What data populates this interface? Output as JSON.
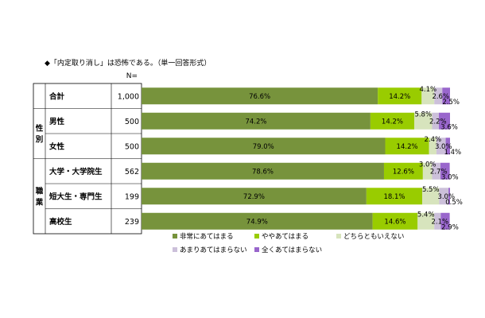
{
  "title": "◆「内定取り消し」は恐怖である。（単一回答形式）",
  "n_header": "N=",
  "groups": [
    {
      "label": "",
      "rows": [
        0
      ]
    },
    {
      "label": "性別",
      "rows": [
        1,
        2
      ]
    },
    {
      "label": "職業",
      "rows": [
        3,
        4,
        5
      ]
    }
  ],
  "chart_data": {
    "type": "bar",
    "orientation": "horizontal",
    "stacked": true,
    "normalized_to_100_percent": true,
    "categories": [
      "合計",
      "男性",
      "女性",
      "大学・大学院生",
      "短大生・専門生",
      "高校生"
    ],
    "n": [
      "1,000",
      "500",
      "500",
      "562",
      "199",
      "239"
    ],
    "series": [
      {
        "name": "非常にあてはまる",
        "color": "#77933c",
        "values": [
          76.6,
          74.2,
          79.0,
          78.6,
          72.9,
          74.9
        ],
        "labels": [
          "76.6%",
          "74.2%",
          "79.0%",
          "78.6%",
          "72.9%",
          "74.9%"
        ]
      },
      {
        "name": "ややあてはまる",
        "color": "#99cc00",
        "values": [
          14.2,
          14.2,
          14.2,
          12.6,
          18.1,
          14.6
        ],
        "labels": [
          "14.2%",
          "14.2%",
          "14.2%",
          "12.6%",
          "18.1%",
          "14.6%"
        ]
      },
      {
        "name": "どちらともいえない",
        "color": "#d7e4bd",
        "values": [
          4.1,
          5.8,
          2.4,
          3.0,
          5.5,
          5.4
        ],
        "labels": [
          "4.1%",
          "5.8%",
          "2.4%",
          "3.0%",
          "5.5%",
          "5.4%"
        ]
      },
      {
        "name": "あまりあてはまらない",
        "color": "#ccc0da",
        "values": [
          2.6,
          2.2,
          3.0,
          2.7,
          3.0,
          2.1
        ],
        "labels": [
          "2.6%",
          "2.2%",
          "3.0%",
          "2.7%",
          "3.0%",
          "2.1%"
        ]
      },
      {
        "name": "全くあてはまらない",
        "color": "#9966cc",
        "values": [
          2.5,
          3.6,
          1.4,
          3.0,
          0.5,
          2.9
        ],
        "labels": [
          "2.5%",
          "3.6%",
          "1.4%",
          "3.0%",
          "0.5%",
          "2.9%"
        ]
      }
    ],
    "legend_position": "bottom"
  }
}
